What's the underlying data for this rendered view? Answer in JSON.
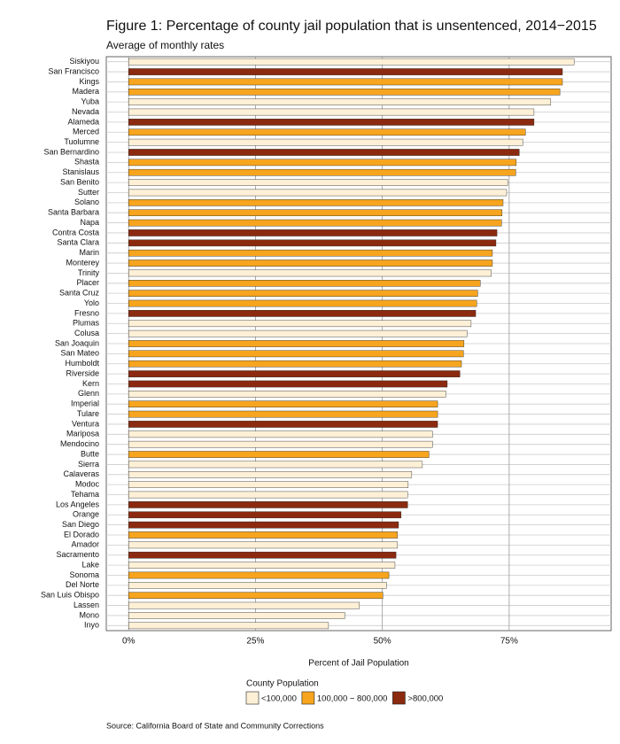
{
  "chart_data": {
    "type": "bar",
    "orientation": "horizontal",
    "title": "Figure 1: Percentage of county jail population that is unsentenced, 2014−2015",
    "subtitle": "Average of monthly rates",
    "xlabel": "Percent of Jail Population",
    "source": "Source: California Board of State and Community Corrections",
    "categories": [
      "Siskiyou",
      "San Francisco",
      "Kings",
      "Madera",
      "Yuba",
      "Nevada",
      "Alameda",
      "Merced",
      "Tuolumne",
      "San Bernardino",
      "Shasta",
      "Stanislaus",
      "San Benito",
      "Sutter",
      "Solano",
      "Santa Barbara",
      "Napa",
      "Contra Costa",
      "Santa Clara",
      "Marin",
      "Monterey",
      "Trinity",
      "Placer",
      "Santa Cruz",
      "Yolo",
      "Fresno",
      "Plumas",
      "Colusa",
      "San Joaquin",
      "San Mateo",
      "Humboldt",
      "Riverside",
      "Kern",
      "Glenn",
      "Imperial",
      "Tulare",
      "Ventura",
      "Mariposa",
      "Mendocino",
      "Butte",
      "Sierra",
      "Calaveras",
      "Modoc",
      "Tehama",
      "Los Angeles",
      "Orange",
      "San Diego",
      "El Dorado",
      "Amador",
      "Sacramento",
      "Lake",
      "Sonoma",
      "Del Norte",
      "San Luis Obispo",
      "Lassen",
      "Mono",
      "Inyo"
    ],
    "values": [
      87.8,
      85.5,
      85.5,
      85.0,
      83.2,
      79.9,
      79.9,
      78.2,
      77.7,
      77.0,
      76.4,
      76.3,
      74.7,
      74.5,
      73.8,
      73.6,
      73.5,
      72.6,
      72.4,
      71.7,
      71.7,
      71.5,
      69.3,
      68.8,
      68.6,
      68.4,
      67.5,
      66.7,
      66.1,
      66.0,
      65.6,
      65.3,
      62.8,
      62.5,
      60.9,
      60.9,
      60.9,
      59.9,
      59.9,
      59.2,
      57.9,
      55.8,
      55.1,
      55.0,
      55.0,
      53.7,
      53.2,
      53.0,
      53.0,
      52.7,
      52.5,
      51.3,
      50.8,
      50.1,
      45.5,
      42.6,
      39.4
    ],
    "group": [
      0,
      2,
      1,
      1,
      0,
      0,
      2,
      1,
      0,
      2,
      1,
      1,
      0,
      0,
      1,
      1,
      1,
      2,
      2,
      1,
      1,
      0,
      1,
      1,
      1,
      2,
      0,
      0,
      1,
      1,
      1,
      2,
      2,
      0,
      1,
      1,
      2,
      0,
      0,
      1,
      0,
      0,
      0,
      0,
      2,
      2,
      2,
      1,
      0,
      2,
      0,
      1,
      0,
      1,
      0,
      0,
      0
    ],
    "legend": {
      "title": "County Population",
      "items": [
        {
          "name": "<100,000",
          "color": "#fdf0d6"
        },
        {
          "name": "100,000 − 800,000",
          "color": "#f7a51e"
        },
        {
          "name": ">800,000",
          "color": "#8b2a0f"
        }
      ]
    },
    "xlim": [
      -4.4,
      95.1
    ],
    "xticks": [
      {
        "value": 0,
        "label": "0%"
      },
      {
        "value": 25,
        "label": "25%"
      },
      {
        "value": 50,
        "label": "50%"
      },
      {
        "value": 75,
        "label": "75%"
      }
    ],
    "grid": true
  }
}
